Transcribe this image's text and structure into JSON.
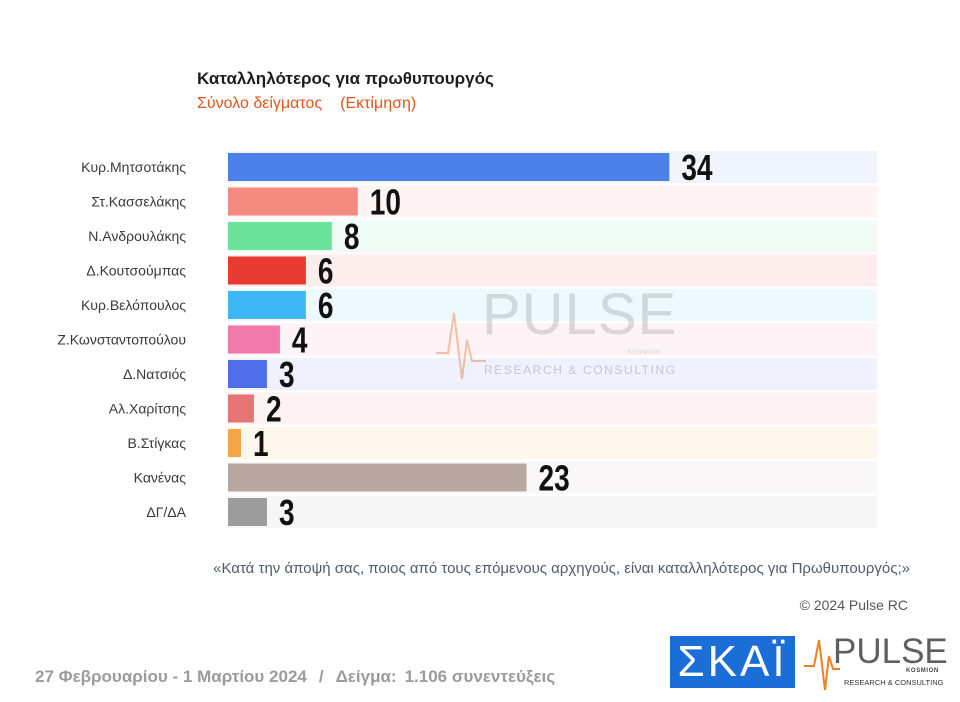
{
  "chart_data": {
    "type": "bar",
    "orientation": "horizontal",
    "title": "Καταλληλότερος για πρωθυπουργός",
    "subtitle": "Σύνολο δείγματος",
    "subtitle_note": "(Εκτίμηση)",
    "categories": [
      "Κυρ.Μητσοτάκης",
      "Στ.Κασσελάκης",
      "Ν.Ανδρουλάκης",
      "Δ.Κουτσούμπας",
      "Κυρ.Βελόπουλος",
      "Ζ.Κωνσταντοπούλου",
      "Δ.Νατσιός",
      "Αλ.Χαρίτσης",
      "Β.Στίγκας",
      "Κανένας",
      "ΔΓ/ΔΑ"
    ],
    "values": [
      34,
      10,
      8,
      6,
      6,
      4,
      3,
      2,
      1,
      23,
      3
    ],
    "colors": [
      "#4a80e8",
      "#f58a80",
      "#6be39a",
      "#ea3b32",
      "#3eb8f4",
      "#f27aaa",
      "#4d6ee8",
      "#e87575",
      "#f6a545",
      "#b9a8a1",
      "#9c9c9c"
    ],
    "xlim": [
      0,
      50
    ],
    "grid": false,
    "legend": "none"
  },
  "question": "«Κατά την άποψή σας, ποιος από τους επόμενους αρχηγούς, είναι καταλληλότερος για Πρωθυπουργός;»",
  "copyright": "© 2024 Pulse RC",
  "footer": {
    "date_range": "27 Φεβρουαρίου - 1 Μαρτίου 2024",
    "separator": "/",
    "sample_label": "Δείγμα:",
    "sample_value": "1.106 συνεντεύξεις"
  },
  "watermark": {
    "name": "PULSE",
    "kosmion": "KOSMION",
    "tagline": "RESEARCH & CONSULTING"
  },
  "logos": {
    "skai": {
      "text": "ΣΚΑΪ",
      "color": "#1b6dd8",
      "icon": "skai-logo"
    },
    "pulse": {
      "name": "PULSE",
      "kosmion": "KOSMION",
      "tagline": "RESEARCH & CONSULTING",
      "accent": "#f07f1e",
      "icon": "heartbeat-icon"
    }
  }
}
